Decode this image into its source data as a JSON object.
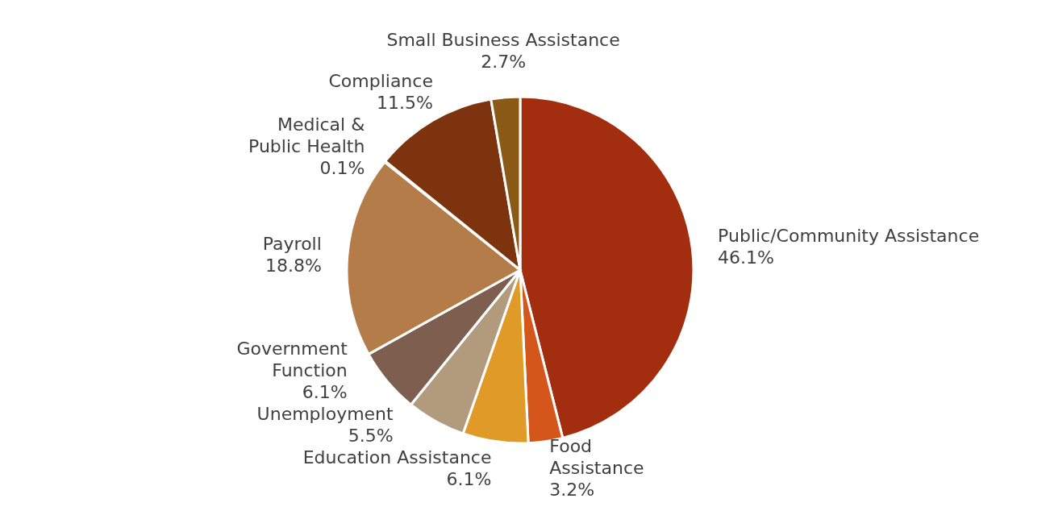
{
  "chart_data": {
    "type": "pie",
    "categories": [
      "Public/Community Assistance",
      "Food\nAssistance",
      "Education Assistance",
      "Unemployment",
      "Government\nFunction",
      "Payroll",
      "Medical &\nPublic Health",
      "Compliance",
      "Small Business Assistance"
    ],
    "values": [
      46.1,
      3.2,
      6.1,
      5.5,
      6.1,
      18.8,
      0.1,
      11.5,
      2.7
    ],
    "value_labels": [
      "46.1%",
      "3.2%",
      "6.1%",
      "5.5%",
      "6.1%",
      "18.8%",
      "0.1%",
      "11.5%",
      "2.7%"
    ],
    "colors": [
      "#a22d0f",
      "#d4561a",
      "#e09a28",
      "#b19b7c",
      "#7e5e4e",
      "#b37c48",
      "#c8a060",
      "#7d330e",
      "#8b5a16"
    ]
  }
}
